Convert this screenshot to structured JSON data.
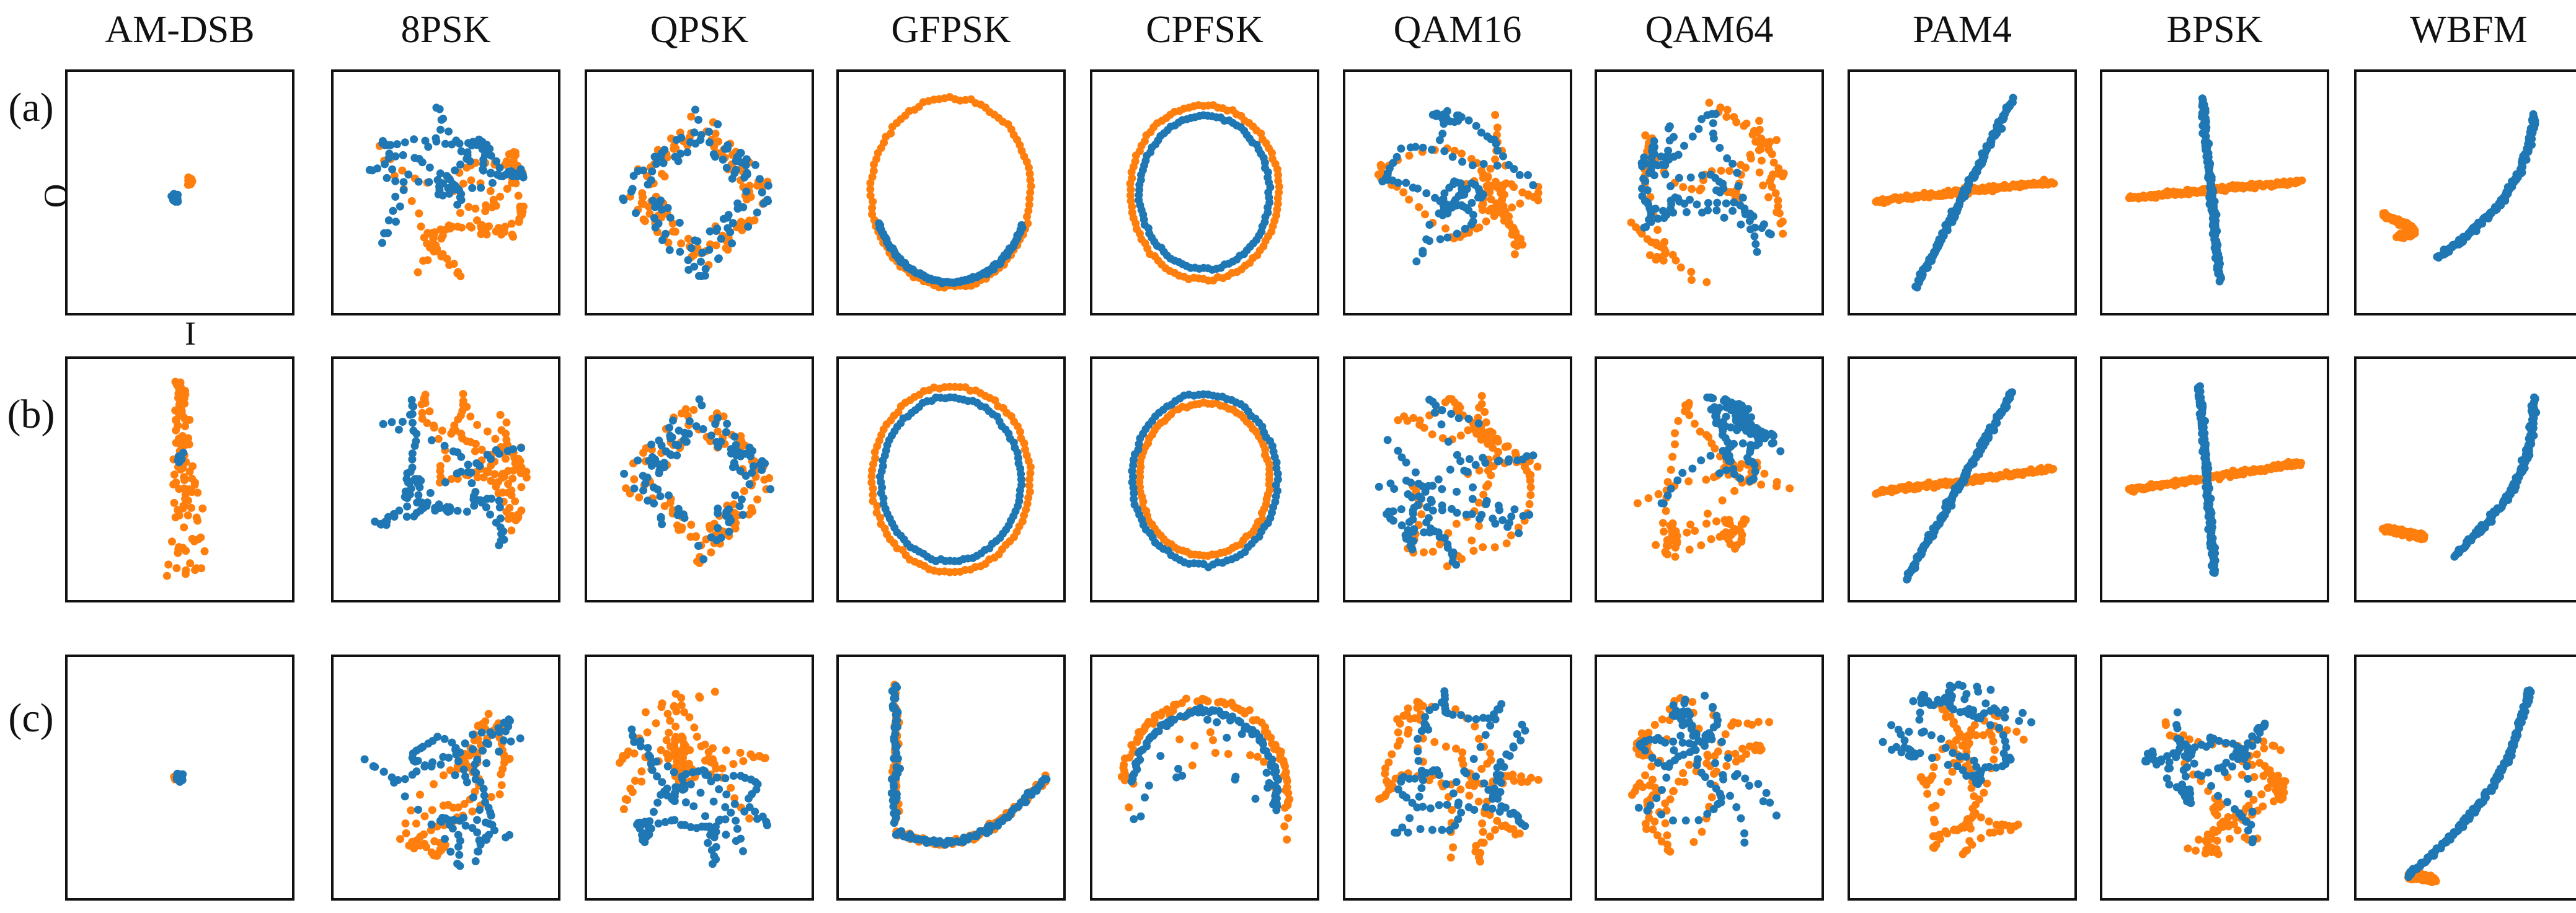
{
  "colors": {
    "blue": "#1f77b4",
    "orange": "#ff7f0e",
    "frame": "#111111"
  },
  "chart_data": {
    "type": "scatter",
    "title": "",
    "description_grid": "small-multiples constellation (I/Q) scatter plots; columns are modulation types, rows are variants (a), (b), (c)",
    "xlabel": "I",
    "ylabel": "Q",
    "columns": [
      "AM-DSB",
      "8PSK",
      "QPSK",
      "GFPSK",
      "CPFSK",
      "QAM16",
      "QAM64",
      "PAM4",
      "BPSK",
      "WBFM"
    ],
    "rows": [
      "(a)",
      "(b)",
      "(c)"
    ],
    "series_names": [
      "blue",
      "orange"
    ],
    "xlim": [
      -1,
      1
    ],
    "ylim": [
      -1,
      1
    ],
    "panels": [
      {
        "row": "(a)",
        "column": "AM-DSB",
        "shape": "tiny-cluster",
        "blue": {
          "cx": -0.05,
          "cy": -0.05,
          "r": 0.05
        },
        "orange": {
          "cx": 0.1,
          "cy": 0.1,
          "r": 0.05
        }
      },
      {
        "row": "(a)",
        "column": "8PSK",
        "shape": "blob",
        "blue": {
          "r": 0.78
        },
        "orange": {
          "r": 0.78
        }
      },
      {
        "row": "(a)",
        "column": "QPSK",
        "shape": "diamond",
        "blue": {
          "r": 0.82
        },
        "orange": {
          "r": 0.82
        }
      },
      {
        "row": "(a)",
        "column": "GFPSK",
        "shape": "ring",
        "blue": {
          "r": 0.82,
          "arc": [
            200,
            340
          ]
        },
        "orange": {
          "r": 0.86
        }
      },
      {
        "row": "(a)",
        "column": "CPFSK",
        "shape": "ring",
        "blue": {
          "r": 0.7
        },
        "orange": {
          "r": 0.8
        }
      },
      {
        "row": "(a)",
        "column": "QAM16",
        "shape": "blob",
        "blue": {
          "r": 0.75
        },
        "orange": {
          "r": 0.8
        }
      },
      {
        "row": "(a)",
        "column": "QAM64",
        "shape": "blob",
        "blue": {
          "r": 0.72
        },
        "orange": {
          "r": 0.82
        }
      },
      {
        "row": "(a)",
        "column": "PAM4",
        "shape": "cross-line",
        "blue": {
          "from": [
            -0.45,
            -0.85
          ],
          "to": [
            0.5,
            0.85
          ]
        },
        "orange": {
          "from": [
            -0.85,
            -0.08
          ],
          "to": [
            0.9,
            0.1
          ]
        }
      },
      {
        "row": "(a)",
        "column": "BPSK",
        "shape": "cross-line",
        "blue": {
          "from": [
            -0.12,
            0.85
          ],
          "to": [
            0.05,
            -0.8
          ]
        },
        "orange": {
          "from": [
            -0.85,
            -0.05
          ],
          "to": [
            0.85,
            0.1
          ]
        }
      },
      {
        "row": "(a)",
        "column": "WBFM",
        "shape": "arc",
        "blue": {
          "from": [
            -0.3,
            -0.6
          ],
          "to": [
            0.65,
            0.7
          ]
        },
        "orange": {
          "from": [
            -0.85,
            -0.2
          ],
          "to": [
            -0.7,
            -0.4
          ]
        }
      },
      {
        "row": "(b)",
        "column": "AM-DSB",
        "shape": "tall-blob",
        "blue": {
          "cx": 0.0,
          "cy": 0.2,
          "r": 0.08
        },
        "orange": {
          "cx": 0.0,
          "cy": 0.0,
          "r": 0.85
        }
      },
      {
        "row": "(b)",
        "column": "8PSK",
        "shape": "blob",
        "blue": {
          "r": 0.8
        },
        "orange": {
          "r": 0.8
        }
      },
      {
        "row": "(b)",
        "column": "QPSK",
        "shape": "diamond",
        "blue": {
          "r": 0.8
        },
        "orange": {
          "r": 0.82
        }
      },
      {
        "row": "(b)",
        "column": "GFPSK",
        "shape": "ring",
        "blue": {
          "r": 0.75
        },
        "orange": {
          "r": 0.85
        }
      },
      {
        "row": "(b)",
        "column": "CPFSK",
        "shape": "ring",
        "blue": {
          "r": 0.78
        },
        "orange": {
          "r": 0.7
        }
      },
      {
        "row": "(b)",
        "column": "QAM16",
        "shape": "blob",
        "blue": {
          "r": 0.78
        },
        "orange": {
          "r": 0.8
        }
      },
      {
        "row": "(b)",
        "column": "QAM64",
        "shape": "blob",
        "blue": {
          "r": 0.75
        },
        "orange": {
          "r": 0.8
        }
      },
      {
        "row": "(b)",
        "column": "PAM4",
        "shape": "cross-line",
        "blue": {
          "from": [
            -0.55,
            -0.9
          ],
          "to": [
            0.5,
            0.8
          ]
        },
        "orange": {
          "from": [
            -0.85,
            -0.12
          ],
          "to": [
            0.9,
            0.1
          ]
        }
      },
      {
        "row": "(b)",
        "column": "BPSK",
        "shape": "cross-line",
        "blue": {
          "from": [
            -0.15,
            0.85
          ],
          "to": [
            0.0,
            -0.85
          ]
        },
        "orange": {
          "from": [
            -0.85,
            -0.1
          ],
          "to": [
            0.85,
            0.15
          ]
        }
      },
      {
        "row": "(b)",
        "column": "WBFM",
        "shape": "arc",
        "blue": {
          "from": [
            -0.15,
            -0.7
          ],
          "to": [
            0.65,
            0.75
          ]
        },
        "orange": {
          "from": [
            -0.85,
            -0.45
          ],
          "to": [
            -0.55,
            -0.5
          ]
        }
      },
      {
        "row": "(c)",
        "column": "AM-DSB",
        "shape": "tiny-cluster",
        "blue": {
          "cx": 0.0,
          "cy": 0.0,
          "r": 0.05
        },
        "orange": {
          "cx": -0.02,
          "cy": 0.0,
          "r": 0.04
        }
      },
      {
        "row": "(c)",
        "column": "8PSK",
        "shape": "blob",
        "blue": {
          "r": 0.82
        },
        "orange": {
          "r": 0.72
        }
      },
      {
        "row": "(c)",
        "column": "QPSK",
        "shape": "blob",
        "blue": {
          "r": 0.8
        },
        "orange": {
          "r": 0.8
        }
      },
      {
        "row": "(c)",
        "column": "GFPSK",
        "shape": "hook",
        "blue": {
          "r": 0.6
        },
        "orange": {
          "r": 0.8
        }
      },
      {
        "row": "(c)",
        "column": "CPFSK",
        "shape": "arch",
        "blue": {
          "r": 0.72
        },
        "orange": {
          "r": 0.82
        }
      },
      {
        "row": "(c)",
        "column": "QAM16",
        "shape": "blob",
        "blue": {
          "r": 0.8
        },
        "orange": {
          "r": 0.8
        }
      },
      {
        "row": "(c)",
        "column": "QAM64",
        "shape": "blob",
        "blue": {
          "r": 0.75
        },
        "orange": {
          "r": 0.78
        }
      },
      {
        "row": "(c)",
        "column": "PAM4",
        "shape": "blob",
        "blue": {
          "r": 0.85
        },
        "orange": {
          "r": 0.7
        }
      },
      {
        "row": "(c)",
        "column": "BPSK",
        "shape": "blob",
        "blue": {
          "r": 0.7
        },
        "orange": {
          "r": 0.7
        }
      },
      {
        "row": "(c)",
        "column": "WBFM",
        "shape": "arc",
        "blue": {
          "from": [
            -0.6,
            -0.9
          ],
          "to": [
            0.6,
            0.8
          ]
        },
        "orange": {
          "from": [
            -0.6,
            -0.9
          ],
          "to": [
            -0.55,
            -0.88
          ]
        }
      }
    ]
  }
}
